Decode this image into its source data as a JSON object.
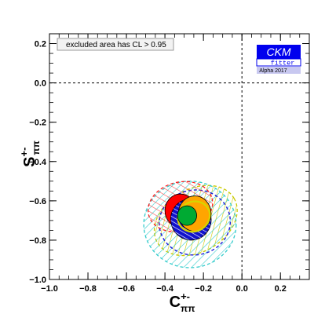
{
  "chart_data": {
    "type": "contour",
    "xlabel": "C",
    "xlabel_superscript": "+-",
    "xlabel_subscript": "ππ",
    "ylabel": "S",
    "ylabel_superscript": "+-",
    "ylabel_subscript": "ππ",
    "xlim": [
      -1.0,
      0.35
    ],
    "ylim": [
      -1.0,
      0.25
    ],
    "x_ticks": [
      -1.0,
      -0.8,
      -0.6,
      -0.4,
      -0.2,
      0.0,
      0.2
    ],
    "x_tick_labels": [
      "−1.0",
      "−0.8",
      "−0.6",
      "−0.4",
      "−0.2",
      "0.0",
      "0.2"
    ],
    "y_ticks": [
      -1.0,
      -0.8,
      -0.6,
      -0.4,
      -0.2,
      0.0,
      0.2
    ],
    "y_tick_labels": [
      "−1.0",
      "−0.8",
      "−0.6",
      "−0.4",
      "−0.2",
      "0.0",
      "0.2"
    ],
    "grid": false,
    "reference_lines": {
      "x": 0.0,
      "y": 0.0
    },
    "annotation": "excluded area has CL > 0.95",
    "logo": {
      "title": "CKM",
      "subtitle": "fitter",
      "tag": "Alpha 2017"
    },
    "regions": [
      {
        "id": "hatch-yellow",
        "center": [
          -0.24,
          -0.7
        ],
        "rx": 0.23,
        "ry": 0.16,
        "rotation_deg": -30,
        "color": "#c9c900",
        "style": "hatched-dashed"
      },
      {
        "id": "hatch-cyan",
        "center": [
          -0.27,
          -0.72
        ],
        "rx": 0.24,
        "ry": 0.22,
        "rotation_deg": 0,
        "color": "#33cccc",
        "style": "hatched-dashed"
      },
      {
        "id": "hatch-blue",
        "center": [
          -0.245,
          -0.71
        ],
        "rx": 0.185,
        "ry": 0.165,
        "rotation_deg": -10,
        "color": "#1b1bd8",
        "style": "dashed"
      },
      {
        "id": "hatch-red",
        "center": [
          -0.32,
          -0.63
        ],
        "rx": 0.17,
        "ry": 0.125,
        "rotation_deg": -15,
        "color": "#ff1f1f",
        "style": "hatched-dashed"
      },
      {
        "id": "red-filled",
        "center": [
          -0.32,
          -0.65
        ],
        "rx": 0.08,
        "ry": 0.085,
        "rotation_deg": 0,
        "color": "#ff0000",
        "style": "filled"
      },
      {
        "id": "blue-filled",
        "center": [
          -0.265,
          -0.695
        ],
        "rx": 0.105,
        "ry": 0.105,
        "rotation_deg": -15,
        "color": "#1111cc",
        "style": "filled-hatched"
      },
      {
        "id": "orange-filled",
        "center": [
          -0.245,
          -0.665
        ],
        "rx": 0.085,
        "ry": 0.09,
        "rotation_deg": 0,
        "color": "#ffa500",
        "style": "filled"
      },
      {
        "id": "yellow-outline",
        "center": [
          -0.25,
          -0.68
        ],
        "rx": 0.085,
        "ry": 0.075,
        "rotation_deg": -30,
        "color": "#d6d600",
        "style": "outline"
      },
      {
        "id": "green-filled",
        "center": [
          -0.285,
          -0.675
        ],
        "rx": 0.05,
        "ry": 0.05,
        "rotation_deg": 0,
        "color": "#00aa33",
        "style": "filled"
      }
    ]
  }
}
